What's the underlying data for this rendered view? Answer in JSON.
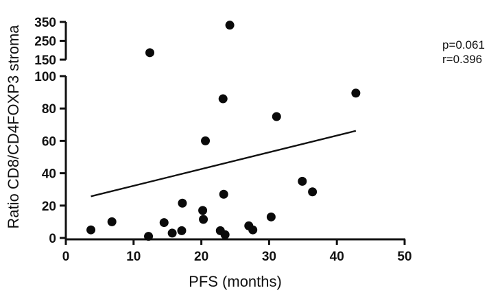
{
  "chart_data": {
    "type": "scatter",
    "xlabel": "PFS (months)",
    "ylabel": "Ratio CD8/CD4FOXP3 stroma",
    "xlim": [
      0,
      50
    ],
    "x_ticks": [
      "0",
      "10",
      "20",
      "30",
      "40",
      "50"
    ],
    "y_segments": [
      {
        "range": [
          0,
          100
        ],
        "ticks": [
          "0",
          "20",
          "40",
          "60",
          "80",
          "100"
        ]
      },
      {
        "range": [
          150,
          350
        ],
        "ticks": [
          "150",
          "250",
          "350"
        ]
      }
    ],
    "y_axis_break": true,
    "points": [
      {
        "x": 3.7,
        "y": 5
      },
      {
        "x": 6.8,
        "y": 10
      },
      {
        "x": 12.2,
        "y": 1
      },
      {
        "x": 14.5,
        "y": 9.5
      },
      {
        "x": 15.7,
        "y": 3
      },
      {
        "x": 17.1,
        "y": 4.5
      },
      {
        "x": 17.2,
        "y": 21.5
      },
      {
        "x": 20.2,
        "y": 17
      },
      {
        "x": 20.3,
        "y": 11.5
      },
      {
        "x": 20.6,
        "y": 60
      },
      {
        "x": 22.8,
        "y": 4.5
      },
      {
        "x": 23.2,
        "y": 86
      },
      {
        "x": 23.3,
        "y": 27
      },
      {
        "x": 23.5,
        "y": 2
      },
      {
        "x": 27.0,
        "y": 7.5
      },
      {
        "x": 27.6,
        "y": 5
      },
      {
        "x": 30.3,
        "y": 13
      },
      {
        "x": 31.1,
        "y": 75
      },
      {
        "x": 34.9,
        "y": 35
      },
      {
        "x": 36.4,
        "y": 28.5
      },
      {
        "x": 42.8,
        "y": 89.5
      },
      {
        "x": 12.4,
        "y": 187
      },
      {
        "x": 24.2,
        "y": 333
      }
    ],
    "trend_line": {
      "x": [
        3.7,
        42.8
      ],
      "y": [
        25.7,
        66.2
      ]
    },
    "annotations": [
      "p=0.061",
      "r=0.396"
    ]
  }
}
